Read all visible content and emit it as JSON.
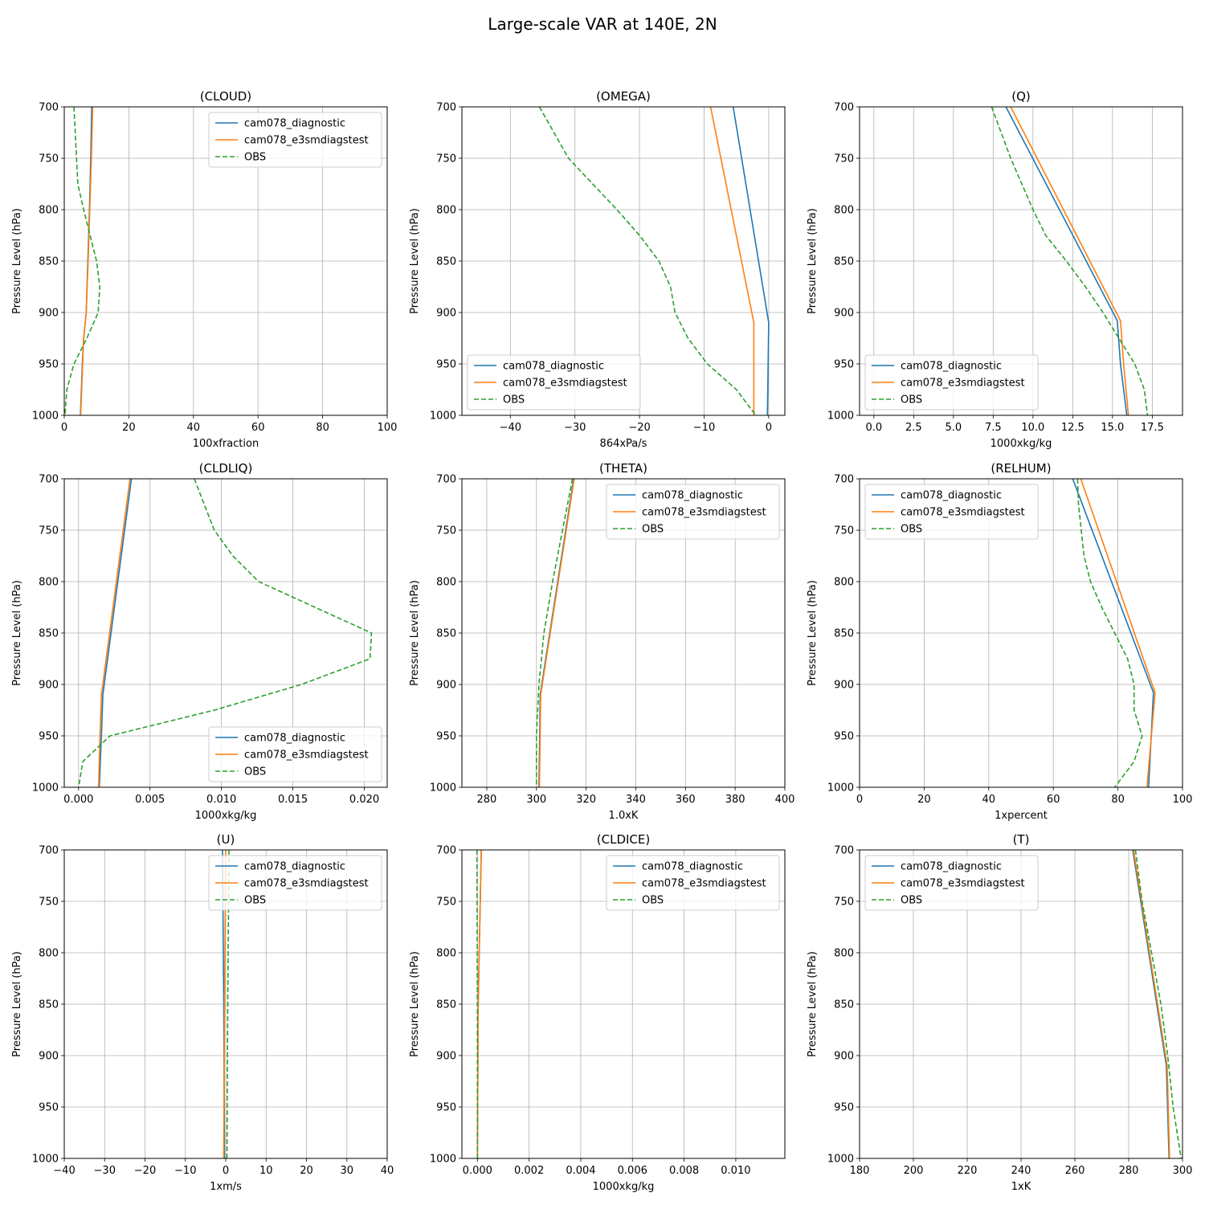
{
  "suptitle": "Large-scale VAR at 140E, 2N",
  "colors": {
    "cam078_diagnostic": "#1f77b4",
    "cam078_e3smdiagstest": "#ff7f0e",
    "OBS": "#2ca02c"
  },
  "chart_data": [
    {
      "type": "line",
      "title": "(CLOUD)",
      "xlabel": "100xfraction",
      "ylabel": "Pressure Level (hPa)",
      "xlim": [
        0,
        100
      ],
      "ylim": [
        700,
        1000
      ],
      "y_inverted": true,
      "xticks": [
        0,
        20,
        40,
        60,
        80,
        100
      ],
      "xtick_labels": [
        "0",
        "20",
        "40",
        "60",
        "80",
        "100"
      ],
      "yticks": [
        700,
        750,
        800,
        850,
        900,
        950,
        1000
      ],
      "ytick_labels": [
        "700",
        "750",
        "800",
        "850",
        "900",
        "950",
        "1000"
      ],
      "grid": true,
      "legend": "top-right",
      "series": [
        {
          "name": "cam078_diagnostic",
          "style": "solid",
          "x": [
            8.5,
            8.2,
            7.8,
            7.3,
            6.8,
            6.0,
            5.6,
            5.3,
            5.0
          ],
          "y": [
            700,
            750,
            800,
            850,
            900,
            925,
            950,
            975,
            1000
          ]
        },
        {
          "name": "cam078_e3smdiagstest",
          "style": "solid",
          "x": [
            8.8,
            8.4,
            7.9,
            7.4,
            6.8,
            6.0,
            5.7,
            5.4,
            5.1
          ],
          "y": [
            700,
            750,
            800,
            850,
            900,
            925,
            950,
            975,
            1000
          ]
        },
        {
          "name": "OBS",
          "style": "dashed",
          "x": [
            3.0,
            4.2,
            6.0,
            10.0,
            11.0,
            10.5,
            7.0,
            3.0,
            0.8,
            0.2
          ],
          "y": [
            700,
            775,
            800,
            850,
            875,
            900,
            925,
            950,
            975,
            1000
          ]
        }
      ]
    },
    {
      "type": "line",
      "title": "(OMEGA)",
      "xlabel": "864xPa/s",
      "ylabel": "Pressure Level (hPa)",
      "xlim": [
        -47.5,
        2.5
      ],
      "ylim": [
        700,
        1000
      ],
      "y_inverted": true,
      "xticks": [
        -40,
        -30,
        -20,
        -10,
        0
      ],
      "xtick_labels": [
        "−40",
        "−30",
        "−20",
        "−10",
        "0"
      ],
      "yticks": [
        700,
        750,
        800,
        850,
        900,
        950,
        1000
      ],
      "ytick_labels": [
        "700",
        "750",
        "800",
        "850",
        "900",
        "950",
        "1000"
      ],
      "grid": true,
      "legend": "bottom-left",
      "series": [
        {
          "name": "cam078_diagnostic",
          "style": "solid",
          "x": [
            -5.5,
            0.0,
            -0.2
          ],
          "y": [
            700,
            910,
            1000
          ]
        },
        {
          "name": "cam078_e3smdiagstest",
          "style": "solid",
          "x": [
            -9.0,
            -2.3,
            -2.3
          ],
          "y": [
            700,
            910,
            1000
          ]
        },
        {
          "name": "OBS",
          "style": "dashed",
          "x": [
            -35.5,
            -31.0,
            -23.5,
            -20.0,
            -17.0,
            -15.2,
            -14.5,
            -12.5,
            -9.5,
            -5.0,
            -2.0
          ],
          "y": [
            700,
            750,
            800,
            825,
            850,
            875,
            900,
            925,
            950,
            975,
            1000
          ]
        }
      ]
    },
    {
      "type": "line",
      "title": "(Q)",
      "xlabel": "1000xkg/kg",
      "ylabel": "Pressure Level (hPa)",
      "xlim": [
        -0.9,
        19.4
      ],
      "ylim": [
        700,
        1000
      ],
      "y_inverted": true,
      "xticks": [
        0,
        2.5,
        5,
        7.5,
        10,
        12.5,
        15,
        17.5
      ],
      "xtick_labels": [
        "0.0",
        "2.5",
        "5.0",
        "7.5",
        "10.0",
        "12.5",
        "15.0",
        "17.5"
      ],
      "yticks": [
        700,
        750,
        800,
        850,
        900,
        950,
        1000
      ],
      "ytick_labels": [
        "700",
        "750",
        "800",
        "850",
        "900",
        "950",
        "1000"
      ],
      "grid": true,
      "legend": "bottom-left",
      "series": [
        {
          "name": "cam078_diagnostic",
          "style": "solid",
          "x": [
            8.3,
            15.3,
            15.5,
            15.9
          ],
          "y": [
            700,
            908,
            950,
            1000
          ]
        },
        {
          "name": "cam078_e3smdiagstest",
          "style": "solid",
          "x": [
            8.6,
            15.5,
            15.7,
            16.0
          ],
          "y": [
            700,
            908,
            950,
            1000
          ]
        },
        {
          "name": "OBS",
          "style": "dashed",
          "x": [
            7.4,
            8.6,
            10.0,
            10.8,
            12.1,
            13.3,
            14.4,
            15.4,
            16.4,
            17.0,
            17.2
          ],
          "y": [
            700,
            750,
            800,
            825,
            850,
            875,
            900,
            925,
            950,
            975,
            1000
          ]
        }
      ]
    },
    {
      "type": "line",
      "title": "(CLDLIQ)",
      "xlabel": "1000xkg/kg",
      "ylabel": "Pressure Level (hPa)",
      "xlim": [
        -0.001,
        0.0216
      ],
      "ylim": [
        700,
        1000
      ],
      "y_inverted": true,
      "xticks": [
        0,
        0.005,
        0.01,
        0.015,
        0.02
      ],
      "xtick_labels": [
        "0.000",
        "0.005",
        "0.010",
        "0.015",
        "0.020"
      ],
      "yticks": [
        700,
        750,
        800,
        850,
        900,
        950,
        1000
      ],
      "ytick_labels": [
        "700",
        "750",
        "800",
        "850",
        "900",
        "950",
        "1000"
      ],
      "grid": true,
      "legend": "bottom-right",
      "series": [
        {
          "name": "cam078_diagnostic",
          "style": "solid",
          "x": [
            0.0037,
            0.0017,
            0.0016,
            0.00145
          ],
          "y": [
            700,
            910,
            950,
            1000
          ]
        },
        {
          "name": "cam078_e3smdiagstest",
          "style": "solid",
          "x": [
            0.0036,
            0.0016,
            0.0015,
            0.0014
          ],
          "y": [
            700,
            910,
            950,
            1000
          ]
        },
        {
          "name": "OBS",
          "style": "dashed",
          "x": [
            0.0081,
            0.0095,
            0.0108,
            0.0126,
            0.0205,
            0.0204,
            0.0156,
            0.0095,
            0.0022,
            0.0003,
            0.0
          ],
          "y": [
            700,
            750,
            775,
            800,
            850,
            875,
            900,
            925,
            950,
            975,
            1000
          ]
        }
      ]
    },
    {
      "type": "line",
      "title": "(THETA)",
      "xlabel": "1.0xK",
      "ylabel": "Pressure Level (hPa)",
      "xlim": [
        270,
        400
      ],
      "ylim": [
        700,
        1000
      ],
      "y_inverted": true,
      "xticks": [
        280,
        300,
        320,
        340,
        360,
        380,
        400
      ],
      "xtick_labels": [
        "280",
        "300",
        "320",
        "340",
        "360",
        "380",
        "400"
      ],
      "yticks": [
        700,
        750,
        800,
        850,
        900,
        950,
        1000
      ],
      "ytick_labels": [
        "700",
        "750",
        "800",
        "850",
        "900",
        "950",
        "1000"
      ],
      "grid": true,
      "legend": "top-right",
      "series": [
        {
          "name": "cam078_diagnostic",
          "style": "solid",
          "x": [
            315.0,
            301.5,
            301.3,
            301.0
          ],
          "y": [
            700,
            910,
            950,
            1000
          ]
        },
        {
          "name": "cam078_e3smdiagstest",
          "style": "solid",
          "x": [
            315.2,
            301.7,
            301.5,
            301.2
          ],
          "y": [
            700,
            910,
            950,
            1000
          ]
        },
        {
          "name": "OBS",
          "style": "dashed",
          "x": [
            314.5,
            310.5,
            306.5,
            303.0,
            301.0,
            300.0,
            300.0
          ],
          "y": [
            700,
            750,
            800,
            850,
            900,
            950,
            1000
          ]
        }
      ]
    },
    {
      "type": "line",
      "title": "(RELHUM)",
      "xlabel": "1xpercent",
      "ylabel": "Pressure Level (hPa)",
      "xlim": [
        0,
        100
      ],
      "ylim": [
        700,
        1000
      ],
      "y_inverted": true,
      "xticks": [
        0,
        20,
        40,
        60,
        80,
        100
      ],
      "xtick_labels": [
        "0",
        "20",
        "40",
        "60",
        "80",
        "100"
      ],
      "yticks": [
        700,
        750,
        800,
        850,
        900,
        950,
        1000
      ],
      "ytick_labels": [
        "700",
        "750",
        "800",
        "850",
        "900",
        "950",
        "1000"
      ],
      "grid": true,
      "legend": "top-left",
      "series": [
        {
          "name": "cam078_diagnostic",
          "style": "solid",
          "x": [
            66.0,
            91.0,
            89.5
          ],
          "y": [
            700,
            908,
            1000
          ]
        },
        {
          "name": "cam078_e3smdiagstest",
          "style": "solid",
          "x": [
            68.5,
            91.5,
            89.0
          ],
          "y": [
            700,
            908,
            1000
          ]
        },
        {
          "name": "OBS",
          "style": "dashed",
          "x": [
            67.5,
            67.8,
            69.5,
            71.5,
            75.0,
            79.0,
            83.0,
            85.0,
            85.0,
            87.5,
            85.0,
            79.0
          ],
          "y": [
            700,
            725,
            775,
            800,
            825,
            850,
            875,
            900,
            925,
            950,
            975,
            1000
          ]
        }
      ]
    },
    {
      "type": "line",
      "title": "(U)",
      "xlabel": "1xm/s",
      "ylabel": "Pressure Level (hPa)",
      "xlim": [
        -40,
        40
      ],
      "ylim": [
        700,
        1000
      ],
      "y_inverted": true,
      "xticks": [
        -40,
        -30,
        -20,
        -10,
        0,
        10,
        20,
        30,
        40
      ],
      "xtick_labels": [
        "−40",
        "−30",
        "−20",
        "−10",
        "0",
        "10",
        "20",
        "30",
        "40"
      ],
      "yticks": [
        700,
        750,
        800,
        850,
        900,
        950,
        1000
      ],
      "ytick_labels": [
        "700",
        "750",
        "800",
        "850",
        "900",
        "950",
        "1000"
      ],
      "grid": true,
      "legend": "top-right",
      "series": [
        {
          "name": "cam078_diagnostic",
          "style": "solid",
          "x": [
            -0.8,
            -0.5,
            -0.3
          ],
          "y": [
            700,
            850,
            1000
          ]
        },
        {
          "name": "cam078_e3smdiagstest",
          "style": "solid",
          "x": [
            0.0,
            -0.3,
            -0.5
          ],
          "y": [
            700,
            850,
            1000
          ]
        },
        {
          "name": "OBS",
          "style": "dashed",
          "x": [
            0.8,
            0.5,
            0.3
          ],
          "y": [
            700,
            850,
            1000
          ]
        }
      ]
    },
    {
      "type": "line",
      "title": "(CLDICE)",
      "xlabel": "1000xkg/kg",
      "ylabel": "Pressure Level (hPa)",
      "xlim": [
        -0.0006,
        0.0119
      ],
      "ylim": [
        700,
        1000
      ],
      "y_inverted": true,
      "xticks": [
        0,
        0.002,
        0.004,
        0.006,
        0.008,
        0.01
      ],
      "xtick_labels": [
        "0.000",
        "0.002",
        "0.004",
        "0.006",
        "0.008",
        "0.010"
      ],
      "yticks": [
        700,
        750,
        800,
        850,
        900,
        950,
        1000
      ],
      "ytick_labels": [
        "700",
        "750",
        "800",
        "850",
        "900",
        "950",
        "1000"
      ],
      "grid": true,
      "legend": "top-right",
      "series": [
        {
          "name": "cam078_diagnostic",
          "style": "solid",
          "x": [
            0.00015,
            3e-05,
            0.0
          ],
          "y": [
            700,
            850,
            1000
          ]
        },
        {
          "name": "cam078_e3smdiagstest",
          "style": "solid",
          "x": [
            0.00015,
            3e-05,
            0.0
          ],
          "y": [
            700,
            850,
            1000
          ]
        },
        {
          "name": "OBS",
          "style": "dashed",
          "x": [
            -2e-05,
            0.0,
            0.0
          ],
          "y": [
            700,
            850,
            1000
          ]
        }
      ]
    },
    {
      "type": "line",
      "title": "(T)",
      "xlabel": "1xK",
      "ylabel": "Pressure Level (hPa)",
      "xlim": [
        180,
        300
      ],
      "ylim": [
        700,
        1000
      ],
      "y_inverted": true,
      "xticks": [
        180,
        200,
        220,
        240,
        260,
        280,
        300
      ],
      "xtick_labels": [
        "180",
        "200",
        "220",
        "240",
        "260",
        "280",
        "300"
      ],
      "yticks": [
        700,
        750,
        800,
        850,
        900,
        950,
        1000
      ],
      "ytick_labels": [
        "700",
        "750",
        "800",
        "850",
        "900",
        "950",
        "1000"
      ],
      "grid": true,
      "legend": "top-left",
      "series": [
        {
          "name": "cam078_diagnostic",
          "style": "solid",
          "x": [
            281.5,
            294.0,
            295.0
          ],
          "y": [
            700,
            910,
            1000
          ]
        },
        {
          "name": "cam078_e3smdiagstest",
          "style": "solid",
          "x": [
            281.8,
            294.3,
            295.2
          ],
          "y": [
            700,
            910,
            1000
          ]
        },
        {
          "name": "OBS",
          "style": "dashed",
          "x": [
            282.5,
            285.0,
            288.5,
            292.0,
            294.5,
            296.5,
            299.5
          ],
          "y": [
            700,
            750,
            800,
            850,
            900,
            950,
            1000
          ]
        }
      ]
    }
  ]
}
